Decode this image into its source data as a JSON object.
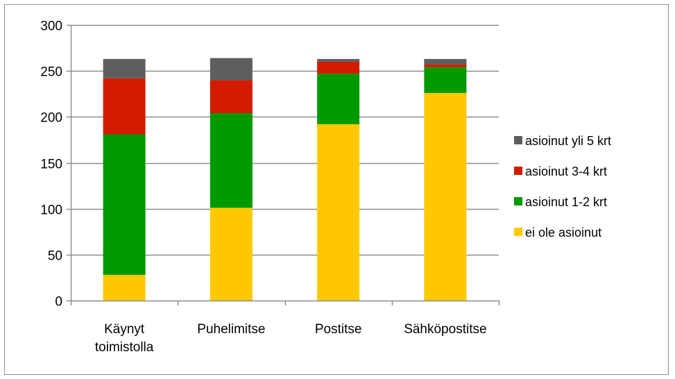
{
  "chart_data": {
    "type": "bar",
    "stacked": true,
    "categories": [
      [
        "Käynyt",
        "toimistolla"
      ],
      [
        "Puhelimitse"
      ],
      [
        "Postitse"
      ],
      [
        "Sähköpostitse"
      ]
    ],
    "series": [
      {
        "name": "ei ole asioinut",
        "color": "#FFC800",
        "values": [
          28,
          101,
          192,
          226
        ]
      },
      {
        "name": "asioinut 1-2 krt",
        "color": "#009A00",
        "values": [
          153,
          103,
          55,
          28
        ]
      },
      {
        "name": "asioinut 3-4 krt",
        "color": "#D21B00",
        "values": [
          61,
          36,
          13,
          3
        ]
      },
      {
        "name": "asioinut yli 5 krt",
        "color": "#5E5E5E",
        "values": [
          21,
          24,
          3,
          6
        ]
      }
    ],
    "ylim": [
      0,
      300
    ],
    "yticks": [
      0,
      50,
      100,
      150,
      200,
      250,
      300
    ],
    "grid": true,
    "legend_position": "right",
    "gridline_color": "#8c8c8c"
  }
}
